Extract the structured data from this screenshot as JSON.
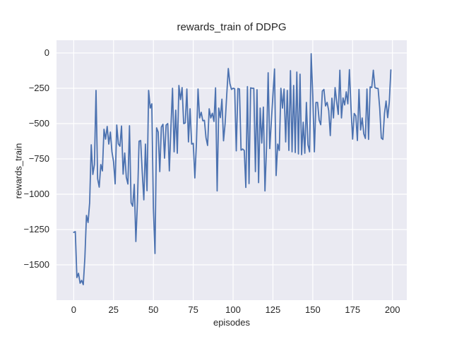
{
  "chart_data": {
    "type": "line",
    "title": "rewards_train of DDPG",
    "xlabel": "episodes",
    "ylabel": "rewards_train",
    "x_ticks": [
      0,
      25,
      50,
      75,
      100,
      125,
      150,
      175,
      200
    ],
    "y_ticks": [
      0,
      -250,
      -500,
      -750,
      -1000,
      -1250,
      -1500
    ],
    "xlim": [
      -10.8,
      209.0
    ],
    "ylim": [
      -1750,
      90
    ],
    "grid": true,
    "legend": "none",
    "style": {
      "line_color": "#4c72b0",
      "axes_background": "#eaeaf2",
      "grid_color": "#ffffff",
      "text_color": "#262626",
      "figure_background": "#ffffff"
    },
    "series": [
      {
        "name": "rewards_train",
        "x_start": 0,
        "x_step": 1,
        "values": [
          -1270,
          -1265,
          -1590,
          -1560,
          -1630,
          -1610,
          -1640,
          -1450,
          -1150,
          -1200,
          -1060,
          -650,
          -860,
          -790,
          -265,
          -890,
          -950,
          -790,
          -835,
          -540,
          -610,
          -520,
          -645,
          -560,
          -700,
          -770,
          -927,
          -510,
          -643,
          -660,
          -517,
          -858,
          -708,
          -880,
          -928,
          -515,
          -1060,
          -1085,
          -930,
          -1335,
          -1050,
          -625,
          -620,
          -845,
          -1040,
          -645,
          -975,
          -265,
          -390,
          -360,
          -1100,
          -1420,
          -530,
          -560,
          -840,
          -525,
          -505,
          -745,
          -510,
          -500,
          -835,
          -525,
          -250,
          -700,
          -405,
          -710,
          -230,
          -330,
          -245,
          -500,
          -495,
          -255,
          -630,
          -395,
          -645,
          -640,
          -885,
          -640,
          -255,
          -460,
          -420,
          -480,
          -477,
          -600,
          -655,
          -395,
          -460,
          -427,
          -485,
          -247,
          -977,
          -390,
          -458,
          -327,
          -622,
          -500,
          -300,
          -110,
          -217,
          -258,
          -250,
          -253,
          -693,
          -252,
          -255,
          -688,
          -680,
          -690,
          -952,
          -238,
          -925,
          -247,
          -250,
          -250,
          -840,
          -260,
          -918,
          -390,
          -638,
          -383,
          -977,
          -663,
          -140,
          -677,
          -485,
          -300,
          -113,
          -868,
          -645,
          -690,
          -250,
          -390,
          -255,
          -630,
          -265,
          -690,
          -125,
          -700,
          -230,
          -705,
          -135,
          -715,
          -150,
          -720,
          -490,
          -710,
          -350,
          -650,
          -700,
          -5,
          -300,
          -700,
          -350,
          -350,
          -475,
          -508,
          -270,
          -258,
          -375,
          -350,
          -408,
          -585,
          -320,
          -460,
          -245,
          -345,
          -435,
          -122,
          -460,
          -318,
          -368,
          -275,
          -360,
          -118,
          -390,
          -610,
          -428,
          -445,
          -620,
          -258,
          -545,
          -460,
          -572,
          -605,
          -255,
          -612,
          -240,
          -245,
          -122,
          -245,
          -250,
          -252,
          -390,
          -602,
          -612,
          -428,
          -340,
          -458,
          -350,
          -120
        ]
      }
    ]
  }
}
